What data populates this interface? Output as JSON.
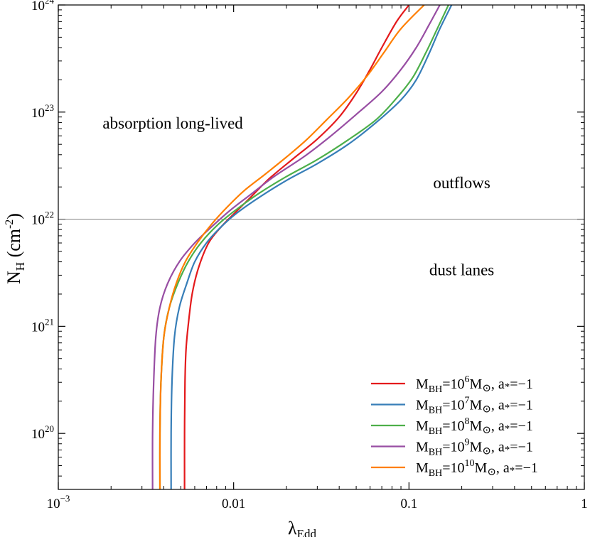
{
  "chart_data": {
    "type": "line",
    "xscale": "log",
    "yscale": "log",
    "xlim": [
      0.001,
      1
    ],
    "ylim": [
      3e+19,
      1e+24
    ],
    "x_ticks": [
      {
        "value": 0.001,
        "base": "10",
        "exp": "−3"
      },
      {
        "value": 0.01,
        "label": "0.01"
      },
      {
        "value": 0.1,
        "label": "0.1"
      },
      {
        "value": 1,
        "label": "1"
      }
    ],
    "y_ticks": [
      {
        "value": 1e+20,
        "base": "10",
        "exp": "20"
      },
      {
        "value": 1e+21,
        "base": "10",
        "exp": "21"
      },
      {
        "value": 1e+22,
        "base": "10",
        "exp": "22"
      },
      {
        "value": 1e+23,
        "base": "10",
        "exp": "23"
      },
      {
        "value": 1e+24,
        "base": "10",
        "exp": "24"
      }
    ],
    "xlabel": {
      "main": "λ",
      "sub": "Edd"
    },
    "ylabel": {
      "main": "N",
      "sub": "H",
      "after": " (cm",
      "sup": "-2",
      "end": ")"
    },
    "hline": 1e+22,
    "annotations": [
      {
        "text": "absorption long-lived",
        "x": 0.0045,
        "y": 7e+22
      },
      {
        "text": "outflows",
        "x": 0.2,
        "y": 1.95e+22
      },
      {
        "text": "dust lanes",
        "x": 0.2,
        "y": 3e+21
      }
    ],
    "legend_position": "bottom-right",
    "series": [
      {
        "legend": {
          "pre": "M",
          "sub": "BH",
          "mid": "=10",
          "sup": "6",
          "post": "M",
          "sun": "⊙",
          "tail": ", a",
          "star": "*",
          "end": "=−1"
        },
        "color": "#e41a1c",
        "points": [
          [
            0.00525,
            3e+19
          ],
          [
            0.00525,
            1e+20
          ],
          [
            0.00528,
            3e+20
          ],
          [
            0.00535,
            6e+20
          ],
          [
            0.0055,
            1e+21
          ],
          [
            0.0058,
            2e+21
          ],
          [
            0.0063,
            3.5e+21
          ],
          [
            0.0072,
            6e+21
          ],
          [
            0.0085,
            8.5e+21
          ],
          [
            0.0102,
            1.15e+22
          ],
          [
            0.0125,
            1.6e+22
          ],
          [
            0.016,
            2.4e+22
          ],
          [
            0.022,
            3.7e+22
          ],
          [
            0.03,
            5.6e+22
          ],
          [
            0.04,
            9e+22
          ],
          [
            0.05,
            1.5e+23
          ],
          [
            0.06,
            2.5e+23
          ],
          [
            0.07,
            4e+23
          ],
          [
            0.085,
            7e+23
          ],
          [
            0.1,
            1e+24
          ]
        ]
      },
      {
        "legend": {
          "pre": "M",
          "sub": "BH",
          "mid": "=10",
          "sup": "7",
          "post": "M",
          "sun": "⊙",
          "tail": ", a",
          "star": "*",
          "end": "=−1"
        },
        "color": "#377eb8",
        "points": [
          [
            0.0044,
            3e+19
          ],
          [
            0.0044,
            1e+20
          ],
          [
            0.00445,
            3e+20
          ],
          [
            0.0046,
            8e+20
          ],
          [
            0.0049,
            1.5e+21
          ],
          [
            0.0054,
            2.5e+21
          ],
          [
            0.006,
            4e+21
          ],
          [
            0.007,
            6e+21
          ],
          [
            0.0085,
            8.5e+21
          ],
          [
            0.0105,
            1.15e+22
          ],
          [
            0.014,
            1.6e+22
          ],
          [
            0.02,
            2.3e+22
          ],
          [
            0.03,
            3.3e+22
          ],
          [
            0.045,
            5e+22
          ],
          [
            0.065,
            8e+22
          ],
          [
            0.09,
            1.3e+23
          ],
          [
            0.11,
            2e+23
          ],
          [
            0.13,
            3.5e+23
          ],
          [
            0.15,
            6e+23
          ],
          [
            0.175,
            1e+24
          ]
        ]
      },
      {
        "legend": {
          "pre": "M",
          "sub": "BH",
          "mid": "=10",
          "sup": "8",
          "post": "M",
          "sun": "⊙",
          "tail": ", a",
          "star": "*",
          "end": "=−1"
        },
        "color": "#4daf4a",
        "points": [
          [
            0.0038,
            3e+19
          ],
          [
            0.0038,
            1e+20
          ],
          [
            0.00385,
            3e+20
          ],
          [
            0.004,
            8e+20
          ],
          [
            0.0043,
            1.5e+21
          ],
          [
            0.0048,
            2.5e+21
          ],
          [
            0.0055,
            4e+21
          ],
          [
            0.0065,
            6e+21
          ],
          [
            0.0082,
            9e+21
          ],
          [
            0.0105,
            1.25e+22
          ],
          [
            0.014,
            1.75e+22
          ],
          [
            0.02,
            2.5e+22
          ],
          [
            0.03,
            3.6e+22
          ],
          [
            0.045,
            5.5e+22
          ],
          [
            0.065,
            8.5e+22
          ],
          [
            0.085,
            1.35e+23
          ],
          [
            0.105,
            2.1e+23
          ],
          [
            0.125,
            3.6e+23
          ],
          [
            0.145,
            6e+23
          ],
          [
            0.168,
            1e+24
          ]
        ]
      },
      {
        "legend": {
          "pre": "M",
          "sub": "BH",
          "mid": "=10",
          "sup": "9",
          "post": "M",
          "sun": "⊙",
          "tail": ", a",
          "star": "*",
          "end": "=−1"
        },
        "color": "#984ea3",
        "points": [
          [
            0.00345,
            3e+19
          ],
          [
            0.00345,
            1e+20
          ],
          [
            0.0035,
            3e+20
          ],
          [
            0.0036,
            8e+20
          ],
          [
            0.0038,
            1.5e+21
          ],
          [
            0.0042,
            2.5e+21
          ],
          [
            0.0049,
            4e+21
          ],
          [
            0.006,
            6e+21
          ],
          [
            0.0075,
            8.5e+21
          ],
          [
            0.0095,
            1.2e+22
          ],
          [
            0.0125,
            1.7e+22
          ],
          [
            0.017,
            2.5e+22
          ],
          [
            0.025,
            3.8e+22
          ],
          [
            0.035,
            5.8e+22
          ],
          [
            0.05,
            9.5e+22
          ],
          [
            0.07,
            1.55e+23
          ],
          [
            0.09,
            2.5e+23
          ],
          [
            0.11,
            4e+23
          ],
          [
            0.13,
            6.5e+23
          ],
          [
            0.15,
            1e+24
          ]
        ]
      },
      {
        "legend": {
          "pre": "M",
          "sub": "BH",
          "mid": "=10",
          "sup": "10",
          "post": "M",
          "sun": "⊙",
          "tail": ", a",
          "star": "*",
          "end": "=−1"
        },
        "color": "#ff7f00",
        "points": [
          [
            0.0038,
            3e+19
          ],
          [
            0.0038,
            1e+20
          ],
          [
            0.00385,
            3e+20
          ],
          [
            0.004,
            8e+20
          ],
          [
            0.0043,
            1.5e+21
          ],
          [
            0.0047,
            2.5e+21
          ],
          [
            0.0053,
            4e+21
          ],
          [
            0.0062,
            6e+21
          ],
          [
            0.0075,
            9e+21
          ],
          [
            0.0092,
            1.3e+22
          ],
          [
            0.0115,
            1.85e+22
          ],
          [
            0.015,
            2.6e+22
          ],
          [
            0.02,
            3.8e+22
          ],
          [
            0.026,
            5.5e+22
          ],
          [
            0.034,
            8.5e+22
          ],
          [
            0.045,
            1.35e+23
          ],
          [
            0.058,
            2.2e+23
          ],
          [
            0.072,
            3.6e+23
          ],
          [
            0.09,
            6e+23
          ],
          [
            0.122,
            1e+24
          ]
        ]
      }
    ]
  }
}
